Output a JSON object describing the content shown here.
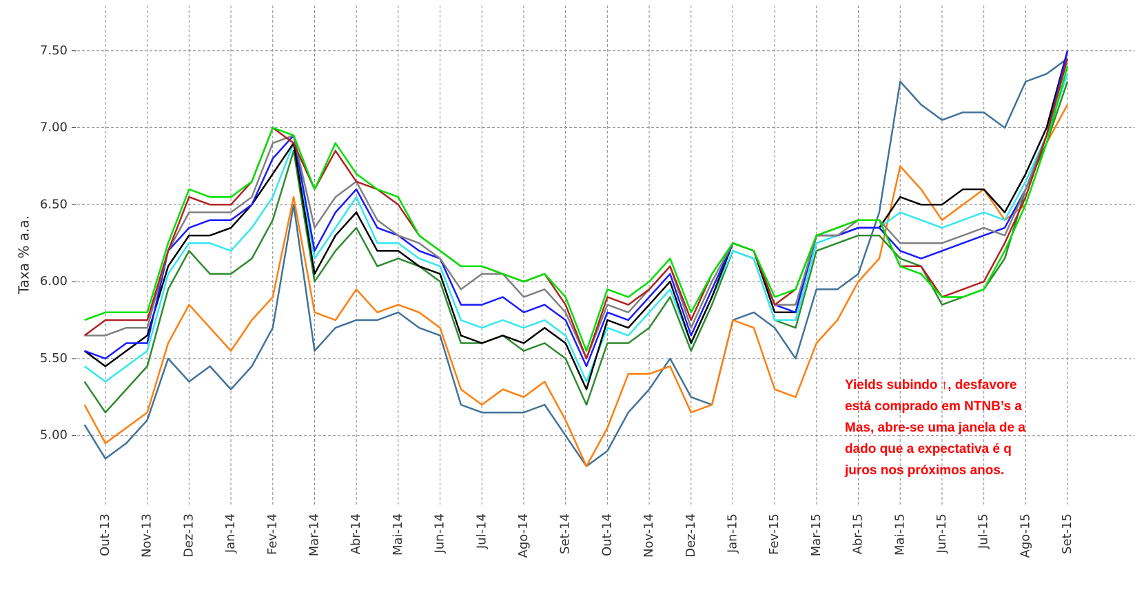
{
  "chart_data": {
    "type": "line",
    "y_label": "Taxa % a.a.",
    "categories": [
      null,
      "Out-13",
      null,
      "Nov-13",
      null,
      "Dez-13",
      null,
      "Jan-14",
      null,
      "Fev-14",
      null,
      "Mar-14",
      null,
      "Abr-14",
      null,
      "Mai-14",
      null,
      "Jun-14",
      null,
      "Jul-14",
      null,
      "Ago-14",
      null,
      "Set-14",
      null,
      "Out-14",
      null,
      "Nov-14",
      null,
      "Dez-14",
      null,
      "Jan-15",
      null,
      "Fev-15",
      null,
      "Mar-15",
      null,
      "Abr-15",
      null,
      "Mai-15",
      null,
      "Jun-15",
      null,
      "Jul-15",
      null,
      "Ago-15",
      null,
      "Set-15"
    ],
    "ylim": [
      4.52,
      7.83
    ],
    "yticks": [
      {
        "value": 5,
        "label": "5.00"
      },
      {
        "value": 5.5,
        "label": "5.50"
      },
      {
        "value": 6,
        "label": "6.00"
      },
      {
        "value": 6.5,
        "label": "6.50"
      },
      {
        "value": 7,
        "label": "7.00"
      },
      {
        "value": 7.5,
        "label": "7.50"
      }
    ],
    "grid": true,
    "series": [
      {
        "color": "#41729a",
        "values": [
          5.07,
          4.85,
          4.95,
          5.1,
          5.5,
          5.35,
          5.45,
          5.3,
          5.45,
          5.7,
          6.5,
          5.55,
          5.7,
          5.75,
          5.75,
          5.8,
          5.7,
          5.65,
          5.2,
          5.15,
          5.15,
          5.15,
          5.2,
          5.0,
          4.8,
          4.9,
          5.15,
          5.3,
          5.5,
          5.25,
          5.2,
          5.75,
          5.8,
          5.7,
          5.5,
          5.95,
          5.95,
          6.05,
          6.45,
          7.3,
          7.15,
          7.05,
          7.1,
          7.1,
          7.0,
          7.3,
          7.35,
          7.45
        ]
      },
      {
        "color": "#ff7f0e",
        "values": [
          5.2,
          4.95,
          5.05,
          5.15,
          5.6,
          5.85,
          5.7,
          5.55,
          5.75,
          5.9,
          6.55,
          5.8,
          5.75,
          5.95,
          5.8,
          5.85,
          5.8,
          5.7,
          5.3,
          5.2,
          5.3,
          5.25,
          5.35,
          5.1,
          4.8,
          5.05,
          5.4,
          5.4,
          5.45,
          5.15,
          5.2,
          5.75,
          5.7,
          5.3,
          5.25,
          5.6,
          5.75,
          6.0,
          6.15,
          6.75,
          6.6,
          6.4,
          6.5,
          6.6,
          6.4,
          6.5,
          6.9,
          7.15
        ]
      },
      {
        "color": "#2e8b2e",
        "values": [
          5.35,
          5.15,
          5.3,
          5.45,
          5.95,
          6.2,
          6.05,
          6.05,
          6.15,
          6.4,
          6.85,
          6.0,
          6.2,
          6.35,
          6.1,
          6.15,
          6.1,
          6.0,
          5.6,
          5.6,
          5.65,
          5.55,
          5.6,
          5.5,
          5.2,
          5.6,
          5.6,
          5.7,
          5.9,
          5.55,
          5.85,
          6.2,
          6.15,
          5.75,
          5.7,
          6.2,
          6.25,
          6.3,
          6.3,
          6.15,
          6.1,
          5.85,
          5.9,
          5.95,
          6.15,
          6.6,
          6.9,
          7.3
        ]
      },
      {
        "color": "#33e8f0",
        "values": [
          5.45,
          5.35,
          5.45,
          5.55,
          6.05,
          6.25,
          6.25,
          6.2,
          6.35,
          6.55,
          6.9,
          6.15,
          6.35,
          6.55,
          6.25,
          6.25,
          6.15,
          6.1,
          5.75,
          5.7,
          5.75,
          5.7,
          5.75,
          5.65,
          5.35,
          5.7,
          5.65,
          5.8,
          5.95,
          5.6,
          5.9,
          6.2,
          6.15,
          5.75,
          5.75,
          6.25,
          6.3,
          6.35,
          6.35,
          6.45,
          6.4,
          6.35,
          6.4,
          6.45,
          6.4,
          6.65,
          6.95,
          7.35
        ]
      },
      {
        "color": "#000000",
        "values": [
          5.55,
          5.45,
          5.55,
          5.65,
          6.1,
          6.3,
          6.3,
          6.35,
          6.5,
          6.7,
          6.9,
          6.05,
          6.3,
          6.45,
          6.2,
          6.2,
          6.1,
          6.05,
          5.65,
          5.6,
          5.65,
          5.6,
          5.7,
          5.6,
          5.3,
          5.75,
          5.7,
          5.85,
          6.0,
          5.6,
          5.9,
          6.25,
          6.2,
          5.8,
          5.8,
          6.3,
          6.3,
          6.35,
          6.35,
          6.55,
          6.5,
          6.5,
          6.6,
          6.6,
          6.45,
          6.7,
          7.0,
          7.5
        ]
      },
      {
        "color": "#1a1aff",
        "values": [
          5.55,
          5.5,
          5.6,
          5.6,
          6.2,
          6.35,
          6.4,
          6.4,
          6.5,
          6.8,
          6.95,
          6.2,
          6.45,
          6.6,
          6.35,
          6.3,
          6.2,
          6.15,
          5.85,
          5.85,
          5.9,
          5.8,
          5.85,
          5.75,
          5.45,
          5.8,
          5.75,
          5.9,
          6.05,
          5.65,
          5.95,
          6.25,
          6.2,
          5.85,
          5.8,
          6.3,
          6.3,
          6.35,
          6.35,
          6.2,
          6.15,
          6.2,
          6.25,
          6.3,
          6.35,
          6.6,
          6.95,
          7.5
        ]
      },
      {
        "color": "#808080",
        "values": [
          5.65,
          5.65,
          5.7,
          5.7,
          6.2,
          6.45,
          6.45,
          6.45,
          6.55,
          6.9,
          6.95,
          6.35,
          6.55,
          6.65,
          6.4,
          6.3,
          6.25,
          6.15,
          5.95,
          6.05,
          6.05,
          5.9,
          5.95,
          5.8,
          5.5,
          5.85,
          5.8,
          5.95,
          6.1,
          5.7,
          6.0,
          6.25,
          6.2,
          5.85,
          5.85,
          6.3,
          6.3,
          6.4,
          6.4,
          6.25,
          6.25,
          6.25,
          6.3,
          6.35,
          6.3,
          6.6,
          6.95,
          7.45
        ]
      },
      {
        "color": "#b22222",
        "values": [
          5.65,
          5.75,
          5.75,
          5.75,
          6.2,
          6.55,
          6.5,
          6.5,
          6.65,
          7.0,
          6.9,
          6.6,
          6.85,
          6.65,
          6.6,
          6.5,
          6.3,
          6.2,
          6.1,
          6.1,
          6.05,
          6.0,
          6.05,
          5.85,
          5.5,
          5.9,
          5.85,
          5.95,
          6.1,
          5.75,
          6.05,
          6.25,
          6.2,
          5.85,
          5.95,
          6.3,
          6.35,
          6.4,
          6.4,
          6.1,
          6.1,
          5.9,
          5.95,
          6.0,
          6.25,
          6.55,
          6.95,
          7.45
        ]
      },
      {
        "color": "#00e000",
        "values": [
          5.75,
          5.8,
          5.8,
          5.8,
          6.25,
          6.6,
          6.55,
          6.55,
          6.65,
          7.0,
          6.95,
          6.6,
          6.9,
          6.7,
          6.6,
          6.55,
          6.3,
          6.2,
          6.1,
          6.1,
          6.05,
          6.0,
          6.05,
          5.9,
          5.55,
          5.95,
          5.9,
          6.0,
          6.15,
          5.8,
          6.05,
          6.25,
          6.2,
          5.9,
          5.95,
          6.3,
          6.35,
          6.4,
          6.4,
          6.1,
          6.05,
          5.9,
          5.9,
          5.95,
          6.2,
          6.5,
          6.9,
          7.4
        ]
      }
    ],
    "annotation": [
      "Yields subindo ↑, desfavore",
      "está comprado em NTNB’s a",
      "Mas, abre-se uma janela de a",
      "dado que a expectativa é q",
      "juros nos próximos anos."
    ],
    "annotation_color": "#ff0000"
  }
}
